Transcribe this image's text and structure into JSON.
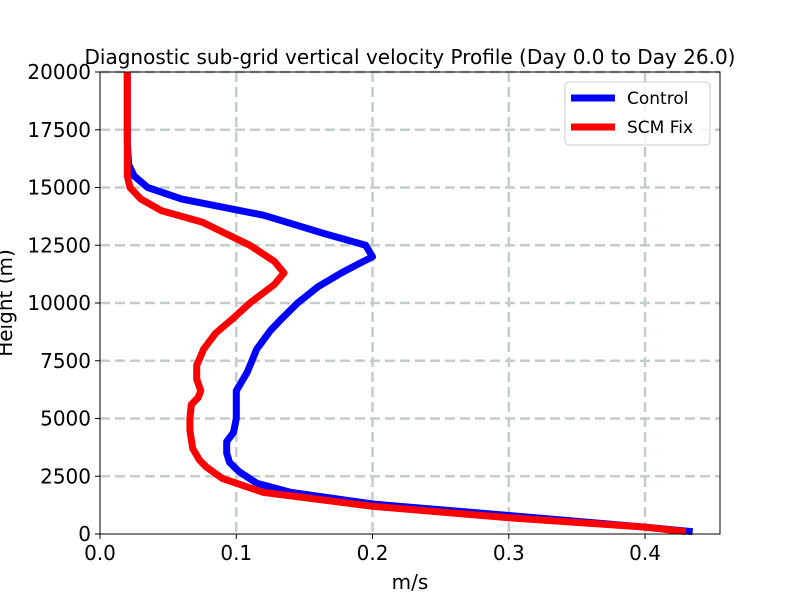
{
  "chart_data": {
    "type": "line",
    "title": "Diagnostic sub-grid vertical velocity Profile (Day 0.0 to Day 26.0)",
    "xlabel": "m/s",
    "ylabel": "Height (m)",
    "xlim": [
      0.0,
      0.455
    ],
    "ylim": [
      0,
      20000
    ],
    "xticks": [
      0.0,
      0.1,
      0.2,
      0.3,
      0.4
    ],
    "xtick_labels": [
      "0.0",
      "0.1",
      "0.2",
      "0.3",
      "0.4"
    ],
    "yticks": [
      0,
      2500,
      5000,
      7500,
      10000,
      12500,
      15000,
      17500,
      20000
    ],
    "ytick_labels": [
      "0",
      "2500",
      "5000",
      "7500",
      "10000",
      "12500",
      "15000",
      "17500",
      "20000"
    ],
    "grid": true,
    "legend_position": "top-right",
    "series": [
      {
        "name": "Control",
        "color": "#0000ff",
        "x": [
          0.435,
          0.4,
          0.3,
          0.2,
          0.14,
          0.115,
          0.102,
          0.095,
          0.093,
          0.093,
          0.098,
          0.1,
          0.1,
          0.1,
          0.108,
          0.115,
          0.125,
          0.133,
          0.145,
          0.16,
          0.177,
          0.19,
          0.2,
          0.195,
          0.165,
          0.12,
          0.06,
          0.035,
          0.025,
          0.021,
          0.02,
          0.02,
          0.02,
          0.02,
          0.02
        ],
        "y": [
          100,
          300,
          800,
          1300,
          1800,
          2200,
          2700,
          3100,
          3500,
          4000,
          4400,
          5000,
          5600,
          6200,
          7000,
          8000,
          8800,
          9300,
          10000,
          10700,
          11300,
          11700,
          12000,
          12500,
          13000,
          13800,
          14500,
          15000,
          15500,
          16000,
          17000,
          18000,
          19000,
          19500,
          20000
        ]
      },
      {
        "name": "SCM Fix",
        "color": "#ff0000",
        "x": [
          0.43,
          0.4,
          0.3,
          0.2,
          0.12,
          0.09,
          0.078,
          0.073,
          0.068,
          0.066,
          0.066,
          0.067,
          0.072,
          0.074,
          0.071,
          0.071,
          0.076,
          0.085,
          0.097,
          0.11,
          0.128,
          0.135,
          0.128,
          0.11,
          0.075,
          0.045,
          0.03,
          0.022,
          0.02,
          0.02,
          0.02,
          0.02
        ],
        "y": [
          100,
          300,
          700,
          1200,
          1800,
          2400,
          2900,
          3200,
          3700,
          4500,
          5000,
          5600,
          5900,
          6200,
          6700,
          7300,
          8000,
          8700,
          9300,
          10000,
          10800,
          11300,
          11800,
          12500,
          13500,
          14000,
          14500,
          15000,
          15500,
          17000,
          19000,
          20000
        ]
      }
    ]
  }
}
